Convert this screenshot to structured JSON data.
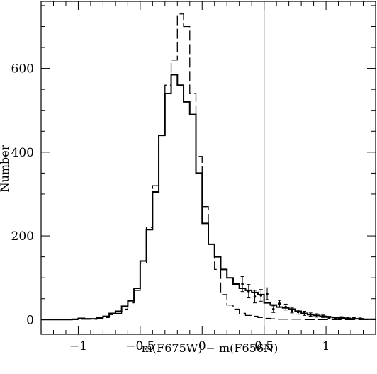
{
  "chart_data": {
    "type": "histogram",
    "title": "",
    "xlabel": "m(F675W) − m(F656N)",
    "ylabel": "Number",
    "xlim": [
      -1.3,
      1.4
    ],
    "ylim": [
      -35,
      760
    ],
    "xticks_major": [
      -1,
      -0.5,
      0,
      0.5,
      1
    ],
    "xtick_labels": [
      "−1",
      "−0.5",
      "0",
      "0.5",
      "1"
    ],
    "xticks_minor_step": 0.1,
    "yticks_major": [
      0,
      200,
      400,
      600
    ],
    "ytick_labels": [
      "0",
      "200",
      "400",
      "600"
    ],
    "yticks_minor_step": 50,
    "grid": false,
    "vertical_line_x": 0.5,
    "bin_edges": [
      -1.3,
      -1.25,
      -1.2,
      -1.15,
      -1.1,
      -1.05,
      -1.0,
      -0.95,
      -0.9,
      -0.85,
      -0.8,
      -0.75,
      -0.7,
      -0.65,
      -0.6,
      -0.55,
      -0.5,
      -0.45,
      -0.4,
      -0.35,
      -0.3,
      -0.25,
      -0.2,
      -0.15,
      -0.1,
      -0.05,
      0.0,
      0.05,
      0.1,
      0.15,
      0.2,
      0.25,
      0.3,
      0.35,
      0.4,
      0.45,
      0.5,
      0.55,
      0.6,
      0.65,
      0.7,
      0.75,
      0.8,
      0.85,
      0.9,
      0.95,
      1.0,
      1.05,
      1.1,
      1.15,
      1.2,
      1.25,
      1.3,
      1.35,
      1.4
    ],
    "series": [
      {
        "style": "solid",
        "values": [
          0,
          0,
          0,
          0,
          0,
          1,
          3,
          2,
          2,
          5,
          8,
          15,
          20,
          32,
          45,
          75,
          140,
          215,
          305,
          440,
          540,
          585,
          560,
          520,
          490,
          350,
          230,
          180,
          150,
          120,
          100,
          85,
          75,
          70,
          65,
          60,
          40,
          35,
          30,
          28,
          25,
          20,
          15,
          12,
          10,
          8,
          6,
          5,
          4,
          3,
          2,
          2,
          1,
          1
        ]
      },
      {
        "style": "dashed",
        "values": [
          0,
          0,
          0,
          0,
          0,
          0,
          1,
          1,
          1,
          3,
          5,
          12,
          15,
          25,
          40,
          70,
          135,
          220,
          320,
          440,
          560,
          620,
          730,
          700,
          540,
          390,
          270,
          180,
          120,
          60,
          35,
          25,
          15,
          10,
          8,
          5,
          3,
          2,
          1,
          1,
          1,
          1,
          0,
          0,
          0,
          0,
          0,
          0,
          0,
          0,
          0,
          0,
          0,
          0
        ]
      }
    ],
    "error_points": [
      {
        "x": 0.325,
        "y": 85,
        "err": 18
      },
      {
        "x": 0.375,
        "y": 68,
        "err": 16
      },
      {
        "x": 0.425,
        "y": 55,
        "err": 15
      },
      {
        "x": 0.475,
        "y": 58,
        "err": 14
      },
      {
        "x": 0.525,
        "y": 62,
        "err": 14
      },
      {
        "x": 0.575,
        "y": 25,
        "err": 8
      },
      {
        "x": 0.625,
        "y": 38,
        "err": 8
      },
      {
        "x": 0.675,
        "y": 30,
        "err": 7
      },
      {
        "x": 0.725,
        "y": 22,
        "err": 6
      },
      {
        "x": 0.775,
        "y": 18,
        "err": 5
      },
      {
        "x": 0.825,
        "y": 15,
        "err": 5
      },
      {
        "x": 0.875,
        "y": 12,
        "err": 4
      },
      {
        "x": 0.925,
        "y": 10,
        "err": 4
      },
      {
        "x": 0.975,
        "y": 8,
        "err": 3
      },
      {
        "x": 1.025,
        "y": 5,
        "err": 3
      },
      {
        "x": 1.075,
        "y": 3,
        "err": 2
      },
      {
        "x": 1.125,
        "y": 5,
        "err": 2
      },
      {
        "x": 1.175,
        "y": 4,
        "err": 2
      },
      {
        "x": 1.225,
        "y": 3,
        "err": 2
      },
      {
        "x": 1.275,
        "y": 2,
        "err": 2
      }
    ]
  }
}
